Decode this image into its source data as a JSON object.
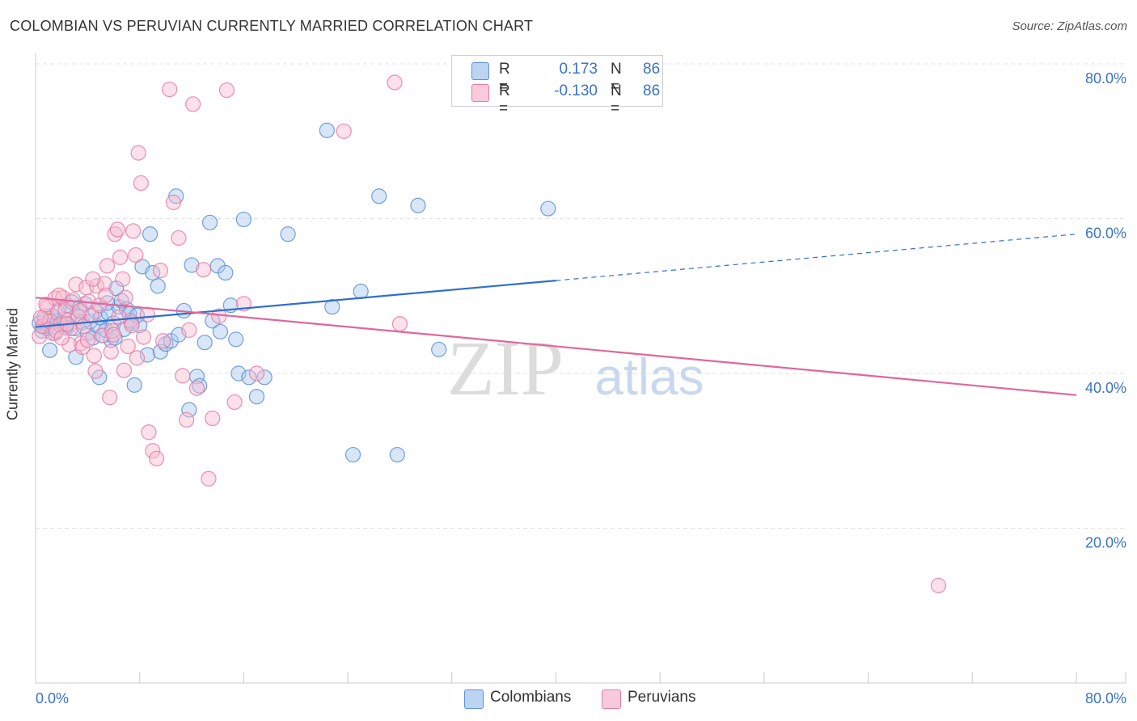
{
  "title": "COLOMBIAN VS PERUVIAN CURRENTLY MARRIED CORRELATION CHART",
  "source": "Source: ZipAtlas.com",
  "watermark": {
    "zip": "ZIP",
    "atlas": "atlas"
  },
  "legend": {
    "r_label": "R =",
    "n_label": "N =",
    "rows": [
      {
        "name": "Colombians",
        "r": "0.173",
        "n": "86",
        "fill": "#a9c8f0",
        "stroke": "#5b8fd6"
      },
      {
        "name": "Peruvians",
        "r": "-0.130",
        "n": "86",
        "fill": "#f8bcd0",
        "stroke": "#e77ba0"
      }
    ]
  },
  "chart_data": {
    "type": "scatter",
    "title": "COLOMBIAN VS PERUVIAN CURRENTLY MARRIED CORRELATION CHART",
    "xlabel": "",
    "ylabel": "Currently Married",
    "xlim": [
      0,
      80
    ],
    "ylim": [
      0,
      80
    ],
    "x_tick_labels": [
      "0.0%",
      "80.0%"
    ],
    "y_tick_labels": [
      "20.0%",
      "40.0%",
      "60.0%",
      "80.0%"
    ],
    "y_ticks": [
      20,
      40,
      60,
      80
    ],
    "grid": true,
    "series": [
      {
        "name": "Colombians",
        "color": "#5b8fd6",
        "fill": "#a9c8f0",
        "trend": {
          "x0": 0,
          "y0": 46.0,
          "x1": 40,
          "y1": 52.0,
          "dash_to_x": 80,
          "dash_to_y": 58.0,
          "color": "#2f6fcf"
        },
        "points": [
          [
            0.3,
            46.5
          ],
          [
            0.5,
            45.5
          ],
          [
            0.7,
            47
          ],
          [
            0.9,
            45.8
          ],
          [
            1.0,
            46.2
          ],
          [
            1.2,
            47.5
          ],
          [
            1.4,
            46
          ],
          [
            1.5,
            45.2
          ],
          [
            1.7,
            46.8
          ],
          [
            1.8,
            48.2
          ],
          [
            2.0,
            46.5
          ],
          [
            2.2,
            47
          ],
          [
            2.4,
            48.8
          ],
          [
            2.6,
            46.2
          ],
          [
            2.8,
            49.2
          ],
          [
            3.0,
            45.8
          ],
          [
            3.2,
            47.4
          ],
          [
            3.4,
            48.5
          ],
          [
            3.6,
            46.6
          ],
          [
            3.8,
            49
          ],
          [
            4.0,
            45.2
          ],
          [
            4.2,
            46.7
          ],
          [
            4.4,
            44.6
          ],
          [
            4.6,
            48
          ],
          [
            4.8,
            46.1
          ],
          [
            5.0,
            47.2
          ],
          [
            5.2,
            44.9
          ],
          [
            5.4,
            45.6
          ],
          [
            5.6,
            47.8
          ],
          [
            5.8,
            44.3
          ],
          [
            6.0,
            46.5
          ],
          [
            6.2,
            51
          ],
          [
            6.4,
            48.6
          ],
          [
            6.6,
            49.4
          ],
          [
            6.8,
            45.7
          ],
          [
            7.0,
            48.3
          ],
          [
            7.2,
            47.7
          ],
          [
            7.4,
            46.5
          ],
          [
            7.6,
            38.5
          ],
          [
            8.0,
            46.2
          ],
          [
            8.2,
            53.8
          ],
          [
            8.6,
            42.4
          ],
          [
            8.8,
            58
          ],
          [
            9.0,
            53
          ],
          [
            9.4,
            51.3
          ],
          [
            9.6,
            42.8
          ],
          [
            10.0,
            43.8
          ],
          [
            10.4,
            44.2
          ],
          [
            10.8,
            62.9
          ],
          [
            11.0,
            45
          ],
          [
            11.4,
            48.1
          ],
          [
            11.8,
            35.3
          ],
          [
            12.0,
            54
          ],
          [
            12.4,
            39.6
          ],
          [
            12.6,
            38.4
          ],
          [
            13.0,
            44
          ],
          [
            13.4,
            59.5
          ],
          [
            13.6,
            46.8
          ],
          [
            14.0,
            53.9
          ],
          [
            14.2,
            45.4
          ],
          [
            14.6,
            53
          ],
          [
            15.0,
            48.8
          ],
          [
            15.4,
            44.4
          ],
          [
            15.6,
            40
          ],
          [
            16.0,
            59.9
          ],
          [
            16.4,
            39.5
          ],
          [
            17.0,
            37
          ],
          [
            17.6,
            39.5
          ],
          [
            19.4,
            58
          ],
          [
            22.4,
            71.4
          ],
          [
            22.8,
            48.6
          ],
          [
            24.4,
            29.5
          ],
          [
            25.0,
            50.6
          ],
          [
            26.4,
            62.9
          ],
          [
            27.8,
            29.5
          ],
          [
            29.4,
            61.7
          ],
          [
            31.0,
            43.1
          ],
          [
            39.4,
            61.3
          ],
          [
            1.1,
            43
          ],
          [
            3.1,
            42.1
          ],
          [
            4.9,
            39.5
          ],
          [
            6.1,
            44.6
          ],
          [
            2.3,
            45.9
          ],
          [
            7.8,
            47.5
          ],
          [
            0.6,
            46.1
          ],
          [
            5.5,
            49.1
          ]
        ]
      },
      {
        "name": "Peruvians",
        "color": "#e77ba0",
        "fill": "#f8bcd0",
        "trend": {
          "x0": 0,
          "y0": 49.8,
          "x1": 80,
          "y1": 37.2,
          "color": "#e0679a"
        },
        "points": [
          [
            0.3,
            44.8
          ],
          [
            0.5,
            46.1
          ],
          [
            0.7,
            47.4
          ],
          [
            0.9,
            48.6
          ],
          [
            1.1,
            46.7
          ],
          [
            1.3,
            45.2
          ],
          [
            1.5,
            49.7
          ],
          [
            1.7,
            47.9
          ],
          [
            1.9,
            46.3
          ],
          [
            2.1,
            49.8
          ],
          [
            2.3,
            48.2
          ],
          [
            2.5,
            46.9
          ],
          [
            2.7,
            45.8
          ],
          [
            2.9,
            49.5
          ],
          [
            3.1,
            51.5
          ],
          [
            3.3,
            47.3
          ],
          [
            3.5,
            43.9
          ],
          [
            3.7,
            46.1
          ],
          [
            3.9,
            51.1
          ],
          [
            4.1,
            49.3
          ],
          [
            4.3,
            47.5
          ],
          [
            4.5,
            42.3
          ],
          [
            4.7,
            51.3
          ],
          [
            4.9,
            48.8
          ],
          [
            5.1,
            44.9
          ],
          [
            5.3,
            51.6
          ],
          [
            5.5,
            53.9
          ],
          [
            5.7,
            36.9
          ],
          [
            5.9,
            45.5
          ],
          [
            6.1,
            58
          ],
          [
            6.3,
            58.6
          ],
          [
            6.5,
            55
          ],
          [
            6.7,
            52.2
          ],
          [
            6.9,
            49.8
          ],
          [
            7.1,
            43.5
          ],
          [
            7.3,
            46.8
          ],
          [
            7.5,
            58.4
          ],
          [
            7.7,
            55.3
          ],
          [
            7.9,
            68.5
          ],
          [
            8.1,
            64.6
          ],
          [
            8.3,
            44.7
          ],
          [
            8.7,
            32.4
          ],
          [
            9.0,
            30
          ],
          [
            9.3,
            29
          ],
          [
            9.6,
            53.3
          ],
          [
            10.3,
            76.7
          ],
          [
            10.6,
            62.1
          ],
          [
            11.0,
            57.5
          ],
          [
            11.3,
            39.7
          ],
          [
            11.6,
            34
          ],
          [
            12.1,
            74.8
          ],
          [
            12.9,
            53.4
          ],
          [
            13.3,
            26.4
          ],
          [
            13.6,
            34.2
          ],
          [
            14.1,
            47.4
          ],
          [
            14.7,
            76.6
          ],
          [
            15.3,
            36.3
          ],
          [
            17.0,
            40
          ],
          [
            23.7,
            71.3
          ],
          [
            27.6,
            77.6
          ],
          [
            28.0,
            46.4
          ],
          [
            69.4,
            12.6
          ],
          [
            1.6,
            45.5
          ],
          [
            2.6,
            43.7
          ],
          [
            3.6,
            43.4
          ],
          [
            4.6,
            40.3
          ],
          [
            5.8,
            42.8
          ],
          [
            6.8,
            40.4
          ],
          [
            7.8,
            42
          ],
          [
            8.6,
            47.6
          ],
          [
            0.8,
            48.9
          ],
          [
            1.8,
            50.1
          ],
          [
            2.4,
            46.4
          ],
          [
            3.4,
            48.1
          ],
          [
            4.4,
            52.2
          ],
          [
            5.4,
            50.1
          ],
          [
            6.4,
            47.3
          ],
          [
            7.4,
            46.2
          ],
          [
            11.8,
            45.6
          ],
          [
            16.0,
            49
          ],
          [
            9.8,
            44.2
          ],
          [
            12.4,
            38.1
          ],
          [
            0.4,
            47.2
          ],
          [
            2.0,
            44.6
          ],
          [
            4.0,
            44.3
          ],
          [
            6.0,
            45
          ]
        ]
      }
    ]
  }
}
